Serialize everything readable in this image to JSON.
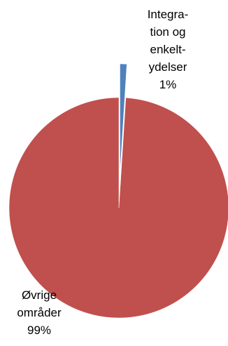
{
  "chart_data": {
    "type": "pie",
    "title": "",
    "slices": [
      {
        "label_lines": [
          "Integra-",
          "tion og",
          "enkelt-",
          "ydelser"
        ],
        "value_label": "1%",
        "value": 1,
        "color": "#4f81bd",
        "exploded": true
      },
      {
        "label_lines": [
          "Øvrige",
          "områder"
        ],
        "value_label": "99%",
        "value": 99,
        "color": "#c0504d",
        "exploded": false
      }
    ],
    "start_angle": "12 o'clock",
    "direction": "clockwise",
    "legend": "none"
  }
}
